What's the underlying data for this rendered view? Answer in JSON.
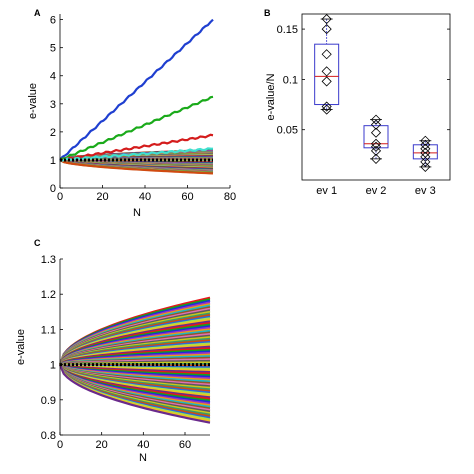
{
  "chart_data": [
    {
      "panel": "A",
      "type": "line",
      "xlabel": "N",
      "ylabel": "e-value",
      "xlim": [
        0,
        80
      ],
      "ylim": [
        0,
        6.2
      ],
      "xticks": [
        "0",
        "20",
        "40",
        "60",
        "80"
      ],
      "yticks": [
        "0",
        "1",
        "2",
        "3",
        "4",
        "5",
        "6"
      ],
      "grid": false,
      "legend": "none",
      "series": [
        {
          "color": "#1f3fd0",
          "x": [
            0,
            72
          ],
          "y": [
            1.0,
            6.0
          ]
        },
        {
          "color": "#1aaa1a",
          "x": [
            0,
            72
          ],
          "y": [
            1.0,
            3.25
          ]
        },
        {
          "color": "#d41c1c",
          "x": [
            0,
            72
          ],
          "y": [
            1.0,
            1.88
          ]
        },
        {
          "color": "#40e0d0",
          "x": [
            0,
            72
          ],
          "y": [
            1.0,
            1.4
          ]
        },
        {
          "color": "#000000",
          "x": [
            0,
            72
          ],
          "y": [
            1.0,
            1.0
          ],
          "style": "dashed"
        }
      ],
      "band": {
        "x_end": 72,
        "upper_end": 1.35,
        "lower_end": 0.52,
        "line_count": 60
      }
    },
    {
      "panel": "B",
      "type": "box",
      "ylabel": "e-value/N",
      "ylim": [
        0,
        0.165
      ],
      "yticks": [
        "0.05",
        "0.1",
        "0.15"
      ],
      "categories": [
        "ev 1",
        "ev 2",
        "ev 3"
      ],
      "boxes": [
        {
          "q1": 0.075,
          "median": 0.103,
          "q3": 0.135,
          "whisker_low": 0.07,
          "whisker_high": 0.16,
          "points": [
            0.16,
            0.15,
            0.125,
            0.108,
            0.098,
            0.073,
            0.07
          ]
        },
        {
          "q1": 0.032,
          "median": 0.036,
          "q3": 0.054,
          "whisker_low": 0.021,
          "whisker_high": 0.06,
          "points": [
            0.06,
            0.055,
            0.047,
            0.036,
            0.033,
            0.029,
            0.021
          ]
        },
        {
          "q1": 0.021,
          "median": 0.027,
          "q3": 0.035,
          "whisker_low": 0.013,
          "whisker_high": 0.039,
          "points": [
            0.039,
            0.035,
            0.031,
            0.027,
            0.023,
            0.018,
            0.013
          ]
        }
      ],
      "box_color": "#3a3acc",
      "median_color": "#d41c1c"
    },
    {
      "panel": "C",
      "type": "line",
      "xlabel": "N",
      "ylabel": "e-value",
      "xlim": [
        0,
        72
      ],
      "ylim": [
        0.8,
        1.3
      ],
      "xticks": [
        "0",
        "20",
        "40",
        "60"
      ],
      "yticks": [
        "0.8",
        "0.9",
        "1",
        "1.1",
        "1.2",
        "1.3"
      ],
      "grid": false,
      "legend": "none",
      "band": {
        "x_end": 72,
        "upper_end": 1.19,
        "lower_end": 0.835,
        "line_count": 80
      },
      "series": [
        {
          "color": "#000000",
          "x": [
            0,
            72
          ],
          "y": [
            1.0,
            1.0
          ],
          "style": "dashed"
        }
      ]
    }
  ]
}
